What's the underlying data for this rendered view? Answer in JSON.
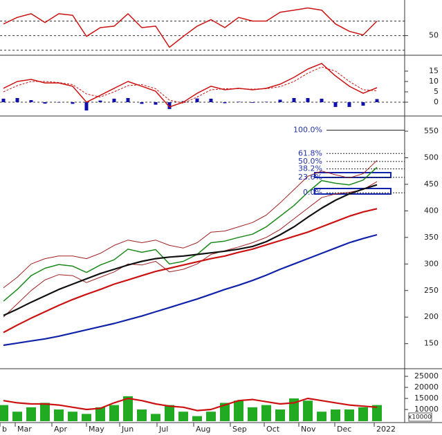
{
  "chart_data": [
    {
      "type": "combo",
      "ylim": [
        25,
        97
      ],
      "yticks": [
        50
      ],
      "levels": [
        70,
        50,
        30
      ],
      "series": [
        {
          "style": "line",
          "color": "#cc1111",
          "values": [
            66,
            75,
            80,
            68,
            80,
            78,
            49,
            61,
            63,
            80,
            61,
            63,
            34,
            49,
            63,
            72,
            61,
            75,
            70,
            70,
            82,
            85,
            88,
            85,
            66,
            56,
            51,
            70
          ]
        }
      ]
    },
    {
      "type": "combo",
      "ylim": [
        -4,
        21
      ],
      "yticks": [
        15,
        10,
        5,
        0
      ],
      "levels": [
        0
      ],
      "series": [
        {
          "style": "bar",
          "color": "#1010aa",
          "values": [
            1.7,
            2,
            1,
            -0.7,
            -0.2,
            -0.8,
            -4,
            0.8,
            1.7,
            2,
            -0.8,
            -1.2,
            -3.3,
            0.5,
            1.8,
            1.7,
            -0.5,
            0.2,
            -0.3,
            0.2,
            1.2,
            2,
            2,
            1.7,
            -2.3,
            -2.3,
            -1.7,
            1.5
          ]
        },
        {
          "style": "dashed",
          "color": "#cc1111",
          "values": [
            5,
            8,
            10,
            10,
            9.5,
            8.5,
            4,
            2.5,
            5,
            8,
            8.5,
            6.5,
            1,
            -0.5,
            2.5,
            6,
            6.5,
            6.5,
            6.3,
            6.5,
            7.5,
            10,
            14,
            17,
            15,
            10,
            6,
            5.5
          ]
        },
        {
          "style": "line",
          "color": "#cc1111",
          "values": [
            6.7,
            10,
            11,
            9.3,
            9.3,
            7.7,
            0,
            3.3,
            6.7,
            10,
            7.7,
            5.3,
            -2.3,
            0,
            4.3,
            7.7,
            6,
            6.7,
            6,
            6.7,
            8.7,
            12,
            16,
            18.7,
            12.7,
            7.7,
            4.3,
            7
          ]
        }
      ]
    },
    {
      "type": "combo",
      "ylim": [
        108,
        576
      ],
      "yticks": [
        550,
        500,
        450,
        400,
        350,
        300,
        250,
        200,
        150
      ],
      "fib_levels": [
        {
          "label": "100.0%",
          "value": 552
        },
        {
          "label": "61.8%",
          "value": 508
        },
        {
          "label": "50.0%",
          "value": 493
        },
        {
          "label": "38.2%",
          "value": 479
        },
        {
          "label": "23.6%",
          "value": 463
        },
        {
          "label": "0.0%",
          "value": 434
        }
      ],
      "series": [
        {
          "style": "thin",
          "color": "#a02020",
          "values": [
            255,
            275,
            300,
            310,
            315,
            315,
            310,
            320,
            335,
            345,
            340,
            345,
            335,
            330,
            340,
            360,
            362,
            370,
            378,
            392,
            415,
            440,
            465,
            475,
            468,
            462,
            470,
            495
          ]
        },
        {
          "style": "thin",
          "color": "#a02020",
          "values": [
            200,
            225,
            250,
            270,
            280,
            278,
            265,
            275,
            285,
            300,
            298,
            305,
            285,
            290,
            300,
            318,
            325,
            332,
            340,
            350,
            365,
            385,
            405,
            425,
            432,
            435,
            440,
            455
          ]
        },
        {
          "style": "line",
          "color": "#1a8a1a",
          "values": [
            230,
            252,
            278,
            292,
            299,
            296,
            284,
            298,
            308,
            328,
            322,
            327,
            300,
            305,
            318,
            340,
            343,
            350,
            356,
            370,
            390,
            410,
            435,
            457,
            452,
            449,
            458,
            482
          ]
        },
        {
          "style": "thick",
          "color": "#111111",
          "values": [
            203,
            215,
            228,
            240,
            252,
            262,
            272,
            282,
            290,
            298,
            305,
            310,
            313,
            315,
            318,
            321,
            324,
            328,
            333,
            342,
            355,
            370,
            388,
            405,
            420,
            432,
            441,
            449
          ]
        },
        {
          "style": "thick",
          "color": "#cc1111",
          "values": [
            171,
            185,
            198,
            210,
            222,
            233,
            243,
            252,
            262,
            270,
            278,
            286,
            292,
            298,
            304,
            310,
            315,
            322,
            328,
            336,
            344,
            352,
            360,
            370,
            380,
            390,
            398,
            404
          ]
        },
        {
          "style": "thick",
          "color": "#1022aa",
          "values": [
            147,
            151,
            155,
            159,
            164,
            170,
            176,
            182,
            188,
            195,
            202,
            210,
            218,
            226,
            234,
            243,
            252,
            260,
            269,
            279,
            290,
            300,
            310,
            320,
            330,
            340,
            348,
            355
          ]
        }
      ]
    },
    {
      "type": "combo",
      "ylim": [
        4700,
        27200
      ],
      "yticks": [
        25000,
        20000,
        15000,
        10000
      ],
      "unit_label": "x10000",
      "xlim": [
        -0.25,
        29
      ],
      "xticks": [
        {
          "value": -0.25,
          "label": "b"
        },
        {
          "value": 0.85,
          "label": "Mar"
        },
        {
          "value": 3.5,
          "label": "Apr"
        },
        {
          "value": 6,
          "label": "May"
        },
        {
          "value": 8.4,
          "label": "Jun"
        },
        {
          "value": 11.1,
          "label": "Jul"
        },
        {
          "value": 13.75,
          "label": "Aug"
        },
        {
          "value": 16.4,
          "label": "Sep"
        },
        {
          "value": 18.85,
          "label": "Oct"
        },
        {
          "value": 21.35,
          "label": "Nov"
        },
        {
          "value": 23.95,
          "label": "Dec"
        },
        {
          "value": 26.8,
          "label": "2022"
        }
      ],
      "series": [
        {
          "style": "bar",
          "color": "#22aa22",
          "values": [
            12000,
            9000,
            11000,
            13000,
            10000,
            9000,
            8000,
            11000,
            12000,
            16000,
            10000,
            8000,
            12000,
            9000,
            7000,
            9000,
            13000,
            14000,
            11000,
            12000,
            10000,
            15000,
            14000,
            9000,
            10000,
            10000,
            11000,
            12000
          ]
        },
        {
          "style": "thick",
          "color": "#cc1111",
          "values": [
            14000,
            13000,
            12500,
            12500,
            12000,
            11000,
            10000,
            10500,
            13000,
            15000,
            14000,
            12500,
            11500,
            11000,
            9500,
            10000,
            12000,
            14000,
            14500,
            13500,
            12500,
            13000,
            15000,
            14000,
            13000,
            12000,
            11500,
            11000
          ]
        }
      ]
    }
  ]
}
